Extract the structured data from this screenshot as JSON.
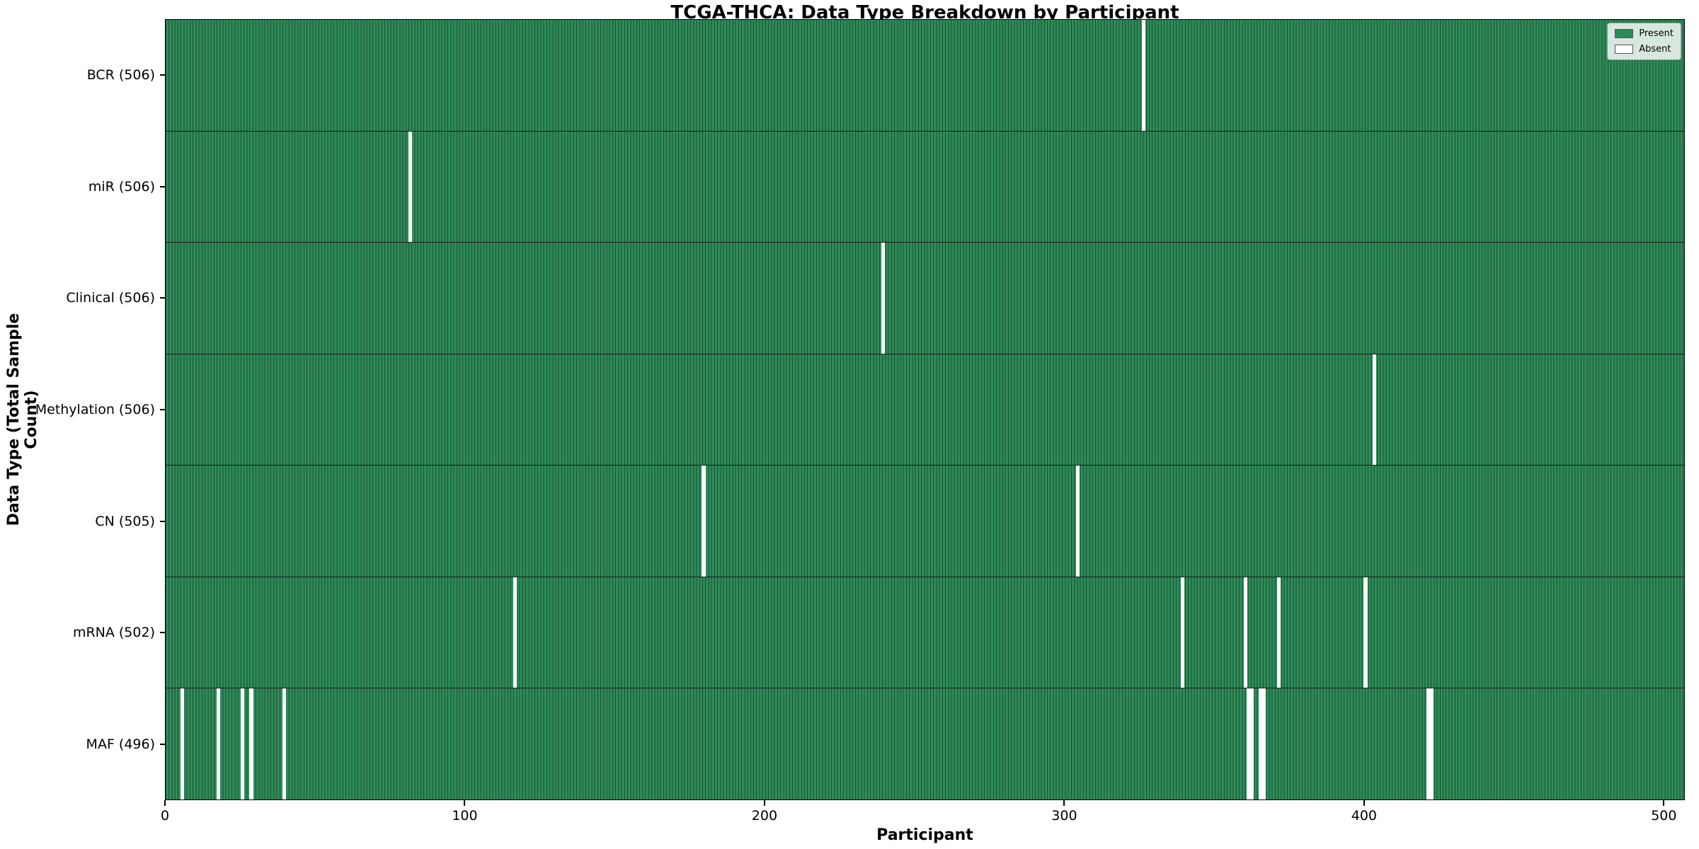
{
  "title": "TCGA-THCA: Data Type Breakdown by Participant",
  "xlabel": "Participant",
  "ylabel": "Data Type (Total Sample Count)",
  "legend": {
    "present_label": "Present",
    "absent_label": "Absent"
  },
  "colors": {
    "present_fill": "#2e8b57",
    "present_edge": "#1c5138",
    "absent_fill": "#ffffff",
    "row_divider": "#1a1a1a"
  },
  "chart_data": {
    "type": "heatmap",
    "title": "TCGA-THCA: Data Type Breakdown by Participant",
    "xlabel": "Participant",
    "ylabel": "Data Type (Total Sample Count)",
    "legend_entries": [
      "Present",
      "Absent"
    ],
    "legend_position": "upper right",
    "grid": false,
    "total_participants": 507,
    "xlim": [
      0,
      507
    ],
    "x_ticks": [
      0,
      100,
      200,
      300,
      400,
      500
    ],
    "rows": [
      {
        "label": "BCR (506)",
        "data_type": "BCR",
        "present_count": 506,
        "absent_participants": [
          326
        ]
      },
      {
        "label": "miR (506)",
        "data_type": "miR",
        "present_count": 506,
        "absent_participants": [
          81
        ]
      },
      {
        "label": "Clinical (506)",
        "data_type": "Clinical",
        "present_count": 506,
        "absent_participants": [
          239
        ]
      },
      {
        "label": "Methylation (506)",
        "data_type": "Methylation",
        "present_count": 506,
        "absent_participants": [
          403
        ]
      },
      {
        "label": "CN (505)",
        "data_type": "CN",
        "present_count": 505,
        "absent_participants": [
          179,
          304
        ]
      },
      {
        "label": "mRNA (502)",
        "data_type": "mRNA",
        "present_count": 502,
        "absent_participants": [
          116,
          339,
          360,
          371,
          400
        ]
      },
      {
        "label": "MAF (496)",
        "data_type": "MAF",
        "present_count": 496,
        "absent_participants": [
          5,
          17,
          25,
          28,
          39,
          361,
          362,
          365,
          366,
          421,
          422
        ]
      }
    ]
  }
}
